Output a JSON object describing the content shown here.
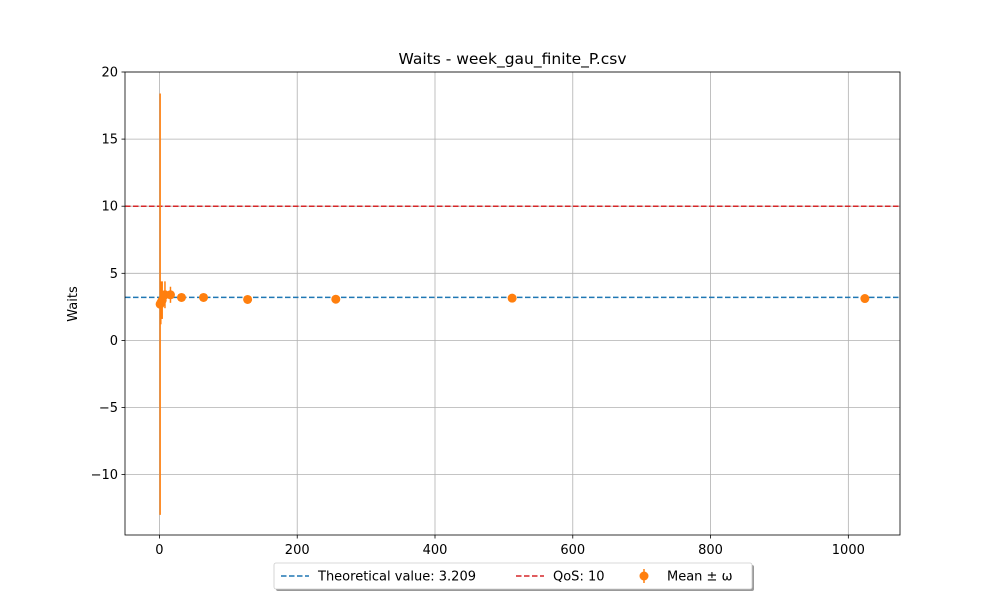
{
  "chart_data": {
    "type": "scatter",
    "title": "Waits - week_gau_finite_P.csv",
    "xlabel": "",
    "ylabel": "Waits",
    "xlim": [
      -50,
      1075
    ],
    "ylim": [
      -14.5,
      20
    ],
    "xticks": [
      0,
      200,
      400,
      600,
      800,
      1000
    ],
    "yticks": [
      -10,
      -5,
      0,
      5,
      10,
      15,
      20
    ],
    "grid": true,
    "legend_placement": "bottom-center",
    "reference_lines": [
      {
        "name": "Theoretical value: 3.209",
        "y": 3.209,
        "style": "dashed",
        "color": "#1f77b4"
      },
      {
        "name": "QoS: 10",
        "y": 10,
        "style": "dashed",
        "color": "#d62728"
      }
    ],
    "series": [
      {
        "name": "Mean ± ω",
        "color": "#ff7f0e",
        "points": [
          {
            "x": 1,
            "y": 2.7,
            "err": 15.7
          },
          {
            "x": 2,
            "y": 2.8,
            "err": 1.6
          },
          {
            "x": 4,
            "y": 3.0,
            "err": 1.4
          },
          {
            "x": 8,
            "y": 3.4,
            "err": 1.0
          },
          {
            "x": 16,
            "y": 3.4,
            "err": 0.6
          },
          {
            "x": 32,
            "y": 3.2,
            "err": 0.3
          },
          {
            "x": 64,
            "y": 3.2,
            "err": 0.2
          },
          {
            "x": 128,
            "y": 3.05,
            "err": 0.15
          },
          {
            "x": 256,
            "y": 3.07,
            "err": 0.1
          },
          {
            "x": 512,
            "y": 3.15,
            "err": 0.07
          },
          {
            "x": 1024,
            "y": 3.12,
            "err": 0.05
          }
        ]
      }
    ],
    "legend": [
      "Theoretical value: 3.209",
      "QoS: 10",
      "Mean ± ω"
    ]
  }
}
